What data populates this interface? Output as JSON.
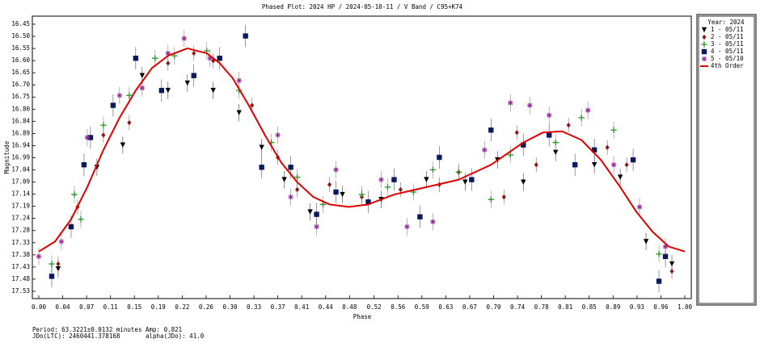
{
  "chart_data": {
    "type": "scatter",
    "title": "Phased Plot: 2024 HP  /  2024-05-10-11  /  V Band  /  C95+K74",
    "x_label": "Phase",
    "y_label": "Magnitude",
    "y_inverted": true,
    "xlim": [
      -0.01,
      1.01
    ],
    "ylim": [
      16.42,
      17.56
    ],
    "xticks": [
      {
        "value": 0,
        "label": "0.00"
      },
      {
        "value": 0.037,
        "label": "0.04"
      },
      {
        "value": 0.074,
        "label": "0.07"
      },
      {
        "value": 0.111,
        "label": "0.11"
      },
      {
        "value": 0.148,
        "label": "0.15"
      },
      {
        "value": 0.185,
        "label": "0.19"
      },
      {
        "value": 0.222,
        "label": "0.22"
      },
      {
        "value": 0.259,
        "label": "0.26"
      },
      {
        "value": 0.296,
        "label": "0.30"
      },
      {
        "value": 0.333,
        "label": "0.33"
      },
      {
        "value": 0.37,
        "label": "0.37"
      },
      {
        "value": 0.407,
        "label": "0.41"
      },
      {
        "value": 0.444,
        "label": "0.44"
      },
      {
        "value": 0.481,
        "label": "0.48"
      },
      {
        "value": 0.519,
        "label": "0.52"
      },
      {
        "value": 0.556,
        "label": "0.56"
      },
      {
        "value": 0.593,
        "label": "0.59"
      },
      {
        "value": 0.63,
        "label": "0.63"
      },
      {
        "value": 0.667,
        "label": "0.67"
      },
      {
        "value": 0.704,
        "label": "0.70"
      },
      {
        "value": 0.741,
        "label": "0.74"
      },
      {
        "value": 0.778,
        "label": "0.78"
      },
      {
        "value": 0.815,
        "label": "0.81"
      },
      {
        "value": 0.852,
        "label": "0.85"
      },
      {
        "value": 0.889,
        "label": "0.89"
      },
      {
        "value": 0.926,
        "label": "0.93"
      },
      {
        "value": 0.963,
        "label": "0.96"
      },
      {
        "value": 1,
        "label": "1.00"
      }
    ],
    "yticks": [
      {
        "value": 16.4525,
        "label": "16.45"
      },
      {
        "value": 16.5015,
        "label": "16.50"
      },
      {
        "value": 16.5505,
        "label": "16.55"
      },
      {
        "value": 16.5995,
        "label": "16.60"
      },
      {
        "value": 16.6485,
        "label": "16.65"
      },
      {
        "value": 16.6975,
        "label": "16.70"
      },
      {
        "value": 16.7465,
        "label": "16.75"
      },
      {
        "value": 16.7955,
        "label": "16.80"
      },
      {
        "value": 16.8445,
        "label": "16.84"
      },
      {
        "value": 16.8935,
        "label": "16.89"
      },
      {
        "value": 16.9425,
        "label": "16.94"
      },
      {
        "value": 16.9915,
        "label": "16.99"
      },
      {
        "value": 17.0405,
        "label": "17.04"
      },
      {
        "value": 17.0895,
        "label": "17.09"
      },
      {
        "value": 17.1385,
        "label": "17.14"
      },
      {
        "value": 17.1875,
        "label": "17.19"
      },
      {
        "value": 17.2365,
        "label": "17.24"
      },
      {
        "value": 17.2855,
        "label": "17.28"
      },
      {
        "value": 17.3345,
        "label": "17.33"
      },
      {
        "value": 17.3835,
        "label": "17.38"
      },
      {
        "value": 17.4325,
        "label": "17.43"
      },
      {
        "value": 17.4815,
        "label": "17.48"
      },
      {
        "value": 17.5305,
        "label": "17.53"
      }
    ],
    "legend_title": "Year: 2024",
    "legend_position": "right",
    "series": [
      {
        "name": "1 - 05/11",
        "color": "#000000",
        "marker": "triangle-down",
        "error": 0.035,
        "x": [
          0.03,
          0.09,
          0.13,
          0.16,
          0.2,
          0.23,
          0.27,
          0.31,
          0.345,
          0.38,
          0.42,
          0.47,
          0.53,
          0.6,
          0.66,
          0.71,
          0.75,
          0.8,
          0.86,
          0.9,
          0.94,
          0.98
        ],
        "values": [
          17.44,
          17.03,
          16.94,
          16.66,
          16.72,
          16.69,
          16.72,
          16.81,
          16.95,
          17.08,
          17.21,
          17.14,
          17.16,
          17.08,
          17.09,
          17.0,
          17.09,
          16.97,
          17.02,
          17.07,
          17.33,
          17.42
        ]
      },
      {
        "name": "2 - 05/11",
        "color": "#8b1a1a",
        "marker": "diamond",
        "error": 0.03,
        "x": [
          0.03,
          0.06,
          0.1,
          0.14,
          0.2,
          0.24,
          0.27,
          0.33,
          0.37,
          0.4,
          0.45,
          0.5,
          0.56,
          0.62,
          0.65,
          0.72,
          0.74,
          0.77,
          0.82,
          0.88,
          0.91,
          0.98
        ],
        "values": [
          17.42,
          17.19,
          16.9,
          16.85,
          16.61,
          16.57,
          16.6,
          16.78,
          16.99,
          17.12,
          17.1,
          17.15,
          17.12,
          17.1,
          17.05,
          17.15,
          16.89,
          17.02,
          16.86,
          16.95,
          17.02,
          17.45
        ]
      },
      {
        "name": "3 - 05/11",
        "color": "#1f9a1f",
        "marker": "plus",
        "error": 0.035,
        "x": [
          0.02,
          0.055,
          0.065,
          0.1,
          0.14,
          0.18,
          0.21,
          0.26,
          0.31,
          0.36,
          0.4,
          0.44,
          0.5,
          0.54,
          0.58,
          0.61,
          0.65,
          0.7,
          0.73,
          0.8,
          0.84,
          0.89,
          0.96
        ],
        "values": [
          17.42,
          17.14,
          17.24,
          16.86,
          16.74,
          16.59,
          16.58,
          16.56,
          16.72,
          16.93,
          17.07,
          17.18,
          17.14,
          17.11,
          17.13,
          17.04,
          17.05,
          17.16,
          16.98,
          16.93,
          16.83,
          16.88,
          17.38
        ]
      },
      {
        "name": "4 - 05/11",
        "color": "#0b1a5c",
        "marker": "square",
        "error": 0.045,
        "x": [
          0.02,
          0.05,
          0.07,
          0.08,
          0.115,
          0.15,
          0.19,
          0.24,
          0.28,
          0.32,
          0.345,
          0.39,
          0.43,
          0.46,
          0.51,
          0.55,
          0.59,
          0.62,
          0.67,
          0.7,
          0.75,
          0.79,
          0.83,
          0.86,
          0.92,
          0.96,
          0.97
        ],
        "values": [
          17.47,
          17.27,
          17.02,
          16.91,
          16.78,
          16.59,
          16.72,
          16.66,
          16.59,
          16.5,
          17.03,
          17.03,
          17.22,
          17.13,
          17.17,
          17.08,
          17.23,
          16.99,
          17.08,
          16.88,
          16.94,
          16.9,
          17.02,
          16.96,
          17.0,
          17.49,
          17.39
        ]
      },
      {
        "name": "5 - 05/10",
        "color": "#9b2c9b",
        "marker": "asterisk",
        "error": 0.035,
        "x": [
          0.0,
          0.035,
          0.075,
          0.125,
          0.16,
          0.2,
          0.225,
          0.265,
          0.31,
          0.37,
          0.39,
          0.43,
          0.46,
          0.53,
          0.57,
          0.61,
          0.69,
          0.73,
          0.76,
          0.79,
          0.85,
          0.89,
          0.93,
          0.97
        ],
        "values": [
          17.39,
          17.33,
          16.91,
          16.74,
          16.71,
          16.57,
          16.51,
          16.59,
          16.68,
          16.9,
          17.15,
          17.27,
          17.04,
          17.08,
          17.27,
          17.25,
          16.96,
          16.77,
          16.78,
          16.82,
          16.8,
          17.02,
          17.19,
          17.35
        ]
      },
      {
        "name": "4th Order",
        "color": "#e00000",
        "marker": "line",
        "x": [
          0,
          0.025,
          0.05,
          0.075,
          0.1,
          0.125,
          0.15,
          0.175,
          0.2,
          0.23,
          0.26,
          0.28,
          0.3,
          0.325,
          0.35,
          0.375,
          0.4,
          0.425,
          0.45,
          0.48,
          0.51,
          0.55,
          0.6,
          0.65,
          0.7,
          0.75,
          0.78,
          0.81,
          0.84,
          0.87,
          0.9,
          0.925,
          0.95,
          0.975,
          1.0
        ],
        "values": [
          17.37,
          17.33,
          17.24,
          17.11,
          16.96,
          16.83,
          16.72,
          16.63,
          16.58,
          16.55,
          16.57,
          16.61,
          16.67,
          16.78,
          16.9,
          17.01,
          17.09,
          17.15,
          17.18,
          17.19,
          17.18,
          17.14,
          17.11,
          17.08,
          17.02,
          16.93,
          16.89,
          16.885,
          16.92,
          17.0,
          17.11,
          17.21,
          17.29,
          17.35,
          17.37
        ]
      }
    ],
    "footer": {
      "period": "Period: 63.3221±0.0132 minutes",
      "amp": "Amp: 0.821",
      "jd": "JDo(LTC): 2460441.378168",
      "alpha": "alpha(JDo): 41.0"
    }
  }
}
